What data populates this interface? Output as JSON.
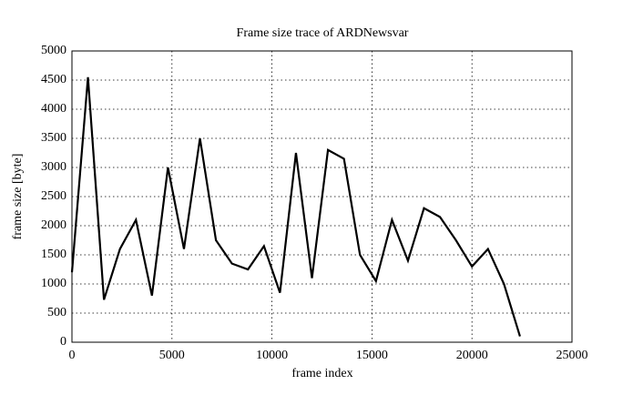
{
  "chart_data": {
    "type": "line",
    "title": "Frame size trace of ARDNewsvar",
    "xlabel": "frame index",
    "ylabel": "frame size [byte]",
    "x": [
      0,
      800,
      1600,
      2400,
      3200,
      4000,
      4800,
      5600,
      6400,
      7200,
      8000,
      8800,
      9600,
      10400,
      11200,
      12000,
      12800,
      13600,
      14400,
      15200,
      16000,
      16800,
      17600,
      18400,
      19200,
      20000,
      20800,
      21600,
      22400
    ],
    "series": [
      {
        "name": "ARDNewsvar",
        "color": "#000000",
        "values": [
          1200,
          4550,
          730,
          1600,
          2100,
          800,
          3000,
          1600,
          3500,
          1750,
          1350,
          1250,
          1650,
          850,
          3250,
          1100,
          3300,
          3150,
          1500,
          1050,
          2100,
          1400,
          2300,
          2150,
          1750,
          1300,
          1600,
          1000,
          100
        ]
      }
    ],
    "xlim": [
      0,
      25000
    ],
    "xticks": [
      0,
      5000,
      10000,
      15000,
      20000,
      25000
    ],
    "ylim": [
      0,
      5000
    ],
    "yticks": [
      0,
      500,
      1000,
      1500,
      2000,
      2500,
      3000,
      3500,
      4000,
      4500,
      5000
    ],
    "grid": true
  }
}
